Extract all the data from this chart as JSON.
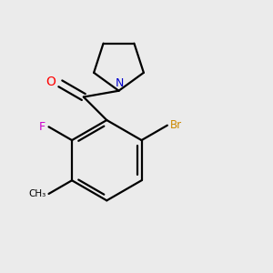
{
  "background_color": "#ebebeb",
  "bond_color": "#000000",
  "atom_colors": {
    "O": "#ff0000",
    "N": "#0000cc",
    "F": "#cc00cc",
    "Br": "#cc8800",
    "C": "#000000"
  },
  "figsize": [
    3.0,
    3.0
  ],
  "dpi": 100,
  "lw": 1.6
}
